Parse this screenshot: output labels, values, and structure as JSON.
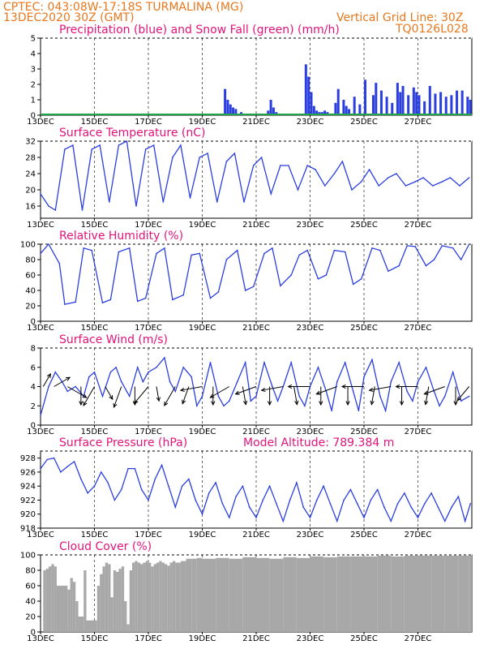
{
  "header": {
    "line1": "CPTEC:   043:08W-17:18S  TURMALINA (MG)",
    "line2": "13DEC2020 30Z (GMT)",
    "right1": "Vertical Grid Line: 30Z",
    "right2": "TQ0126L028"
  },
  "dates": [
    "13DEC",
    "15DEC",
    "17DEC",
    "19DEC",
    "21DEC",
    "23DEC",
    "25DEC",
    "27DEC"
  ],
  "colors": {
    "line": "#2b3fe0",
    "snow": "#1fa64a",
    "cloud": "#a8a8a8",
    "title": "#e0147a",
    "header": "#e8781e"
  },
  "chart_data": [
    {
      "id": "precip",
      "type": "bar",
      "title": "Precipitation (blue) and Snow Fall (green) (mm/h)",
      "ylim": [
        0,
        5
      ],
      "yticks": [
        "0",
        "1",
        "2",
        "3",
        "4",
        "5"
      ],
      "x_days": [
        6.8,
        6.9,
        7.0,
        7.1,
        7.2,
        7.4,
        8.4,
        8.5,
        8.6,
        8.7,
        9.8,
        9.9,
        10.0,
        10.1,
        10.2,
        10.3,
        10.4,
        10.5,
        10.6,
        10.9,
        11.0,
        11.2,
        11.3,
        11.4,
        11.6,
        11.8,
        12.0,
        12.3,
        12.4,
        12.6,
        12.8,
        13.0,
        13.2,
        13.3,
        13.4,
        13.6,
        13.8,
        13.9,
        14.0,
        14.2,
        14.4,
        14.6,
        14.8,
        15.0,
        15.2,
        15.4,
        15.6,
        15.8,
        15.9
      ],
      "values": [
        1.7,
        1.0,
        0.7,
        0.5,
        0.4,
        0.2,
        0.3,
        1.0,
        0.5,
        0.2,
        3.3,
        2.5,
        1.5,
        0.6,
        0.3,
        0.2,
        0.2,
        0.3,
        0.2,
        0.8,
        1.7,
        1.0,
        0.6,
        0.4,
        1.2,
        0.7,
        2.3,
        1.3,
        2.1,
        1.6,
        1.2,
        0.8,
        2.1,
        1.5,
        1.9,
        1.3,
        1.8,
        1.5,
        1.3,
        0.9,
        1.9,
        1.4,
        1.5,
        1.2,
        1.3,
        1.6,
        1.6,
        1.2,
        1.0
      ]
    },
    {
      "id": "temp",
      "type": "line",
      "title": "Surface Temperature (nC)",
      "ylim": [
        13,
        32
      ],
      "yticks": [
        "16",
        "20",
        "24",
        "28",
        "32"
      ],
      "x_days": [
        0.0,
        0.3,
        0.55,
        0.9,
        1.2,
        1.55,
        1.9,
        2.2,
        2.55,
        2.9,
        3.2,
        3.55,
        3.9,
        4.2,
        4.55,
        4.9,
        5.2,
        5.55,
        5.9,
        6.2,
        6.55,
        6.9,
        7.2,
        7.55,
        7.9,
        8.2,
        8.55,
        8.9,
        9.2,
        9.55,
        9.9,
        10.2,
        10.55,
        10.9,
        11.2,
        11.55,
        11.9,
        12.2,
        12.55,
        12.9,
        13.2,
        13.55,
        13.9,
        14.2,
        14.55,
        14.9,
        15.2,
        15.55,
        15.9
      ],
      "values": [
        19,
        16,
        15,
        30,
        31,
        15,
        30,
        31,
        17,
        31,
        32,
        16,
        30,
        31,
        17,
        28,
        31,
        18,
        28,
        29,
        17,
        27,
        29,
        17,
        26,
        28,
        19,
        26,
        26,
        20,
        26,
        25,
        21,
        24,
        27,
        20,
        22,
        25,
        21,
        23,
        24,
        21,
        22,
        23,
        21,
        22,
        23,
        21,
        23
      ]
    },
    {
      "id": "rh",
      "type": "line",
      "title": "Relative Humidity (%)",
      "ylim": [
        0,
        100
      ],
      "yticks": [
        "0",
        "20",
        "40",
        "60",
        "80",
        "100"
      ],
      "x_days": [
        0.0,
        0.3,
        0.7,
        0.9,
        1.3,
        1.6,
        1.9,
        2.3,
        2.6,
        2.9,
        3.3,
        3.6,
        3.9,
        4.3,
        4.6,
        4.9,
        5.3,
        5.6,
        5.9,
        6.3,
        6.6,
        6.9,
        7.3,
        7.6,
        7.9,
        8.3,
        8.6,
        8.9,
        9.3,
        9.6,
        9.9,
        10.3,
        10.6,
        10.9,
        11.3,
        11.6,
        11.9,
        12.3,
        12.6,
        12.9,
        13.3,
        13.6,
        13.9,
        14.3,
        14.6,
        14.9,
        15.3,
        15.6,
        15.9
      ],
      "values": [
        88,
        100,
        75,
        22,
        25,
        95,
        92,
        24,
        28,
        90,
        95,
        26,
        30,
        88,
        95,
        28,
        34,
        86,
        88,
        30,
        38,
        80,
        92,
        40,
        45,
        88,
        95,
        46,
        60,
        86,
        92,
        55,
        60,
        92,
        90,
        48,
        55,
        95,
        92,
        65,
        72,
        98,
        97,
        72,
        80,
        98,
        95,
        80,
        100
      ]
    },
    {
      "id": "wind",
      "type": "line",
      "title": "Surface Wind (m/s)",
      "ylim": [
        0,
        8
      ],
      "yticks": [
        "0",
        "2",
        "4",
        "6",
        "8"
      ],
      "x_days": [
        0.0,
        0.3,
        0.55,
        0.8,
        1.0,
        1.3,
        1.6,
        1.8,
        2.0,
        2.3,
        2.6,
        2.8,
        3.0,
        3.3,
        3.6,
        3.8,
        4.0,
        4.3,
        4.6,
        4.8,
        5.0,
        5.3,
        5.6,
        5.8,
        6.0,
        6.3,
        6.6,
        6.8,
        7.0,
        7.3,
        7.6,
        7.8,
        8.0,
        8.3,
        8.6,
        8.8,
        9.0,
        9.3,
        9.6,
        9.8,
        10.0,
        10.3,
        10.6,
        10.8,
        11.0,
        11.3,
        11.6,
        11.8,
        12.0,
        12.3,
        12.6,
        12.8,
        13.0,
        13.3,
        13.6,
        13.8,
        14.0,
        14.3,
        14.6,
        14.8,
        15.0,
        15.3,
        15.6,
        15.9
      ],
      "values": [
        1.0,
        4.0,
        5.5,
        4.5,
        3.5,
        4.0,
        3.0,
        5.0,
        5.5,
        3.0,
        5.5,
        6.0,
        4.5,
        3.0,
        6.0,
        4.5,
        5.5,
        6.0,
        7.0,
        4.5,
        3.5,
        6.0,
        5.0,
        2.0,
        3.0,
        6.5,
        3.0,
        2.0,
        2.5,
        4.5,
        6.5,
        2.5,
        3.0,
        6.5,
        4.0,
        2.5,
        4.0,
        6.5,
        3.0,
        2.0,
        4.0,
        6.0,
        3.5,
        1.5,
        4.5,
        6.5,
        3.5,
        1.5,
        5.0,
        6.8,
        3.0,
        1.5,
        4.5,
        6.5,
        3.5,
        2.5,
        4.5,
        6.0,
        3.5,
        2.0,
        3.0,
        5.5,
        2.5,
        3.0
      ],
      "arrow_days": [
        0.1,
        0.5,
        1.0,
        1.5,
        2.0,
        2.4,
        3.0,
        3.5,
        4.0,
        4.3,
        5.0,
        5.5,
        6.0,
        6.4,
        7.0,
        7.5,
        8.0,
        8.5,
        9.0,
        9.4,
        10.0,
        10.4,
        11.0,
        11.4,
        12.0,
        12.4,
        13.0,
        13.4,
        14.0,
        14.4,
        15.0,
        15.4,
        15.9
      ],
      "arrow_dir_deg": [
        30,
        60,
        120,
        180,
        210,
        150,
        200,
        180,
        220,
        170,
        210,
        200,
        260,
        180,
        240,
        170,
        250,
        180,
        260,
        170,
        270,
        180,
        250,
        180,
        270,
        190,
        260,
        180,
        270,
        190,
        250,
        180,
        220
      ],
      "arrow_speed": [
        2.0,
        2.5,
        3.0,
        2.5,
        3.0,
        2.0,
        3.0,
        2.5,
        3.0,
        2.0,
        3.0,
        2.5,
        3.0,
        2.5,
        3.0,
        2.5,
        3.0,
        2.5,
        3.0,
        2.5,
        3.0,
        2.5,
        3.0,
        2.5,
        3.0,
        2.5,
        3.0,
        2.5,
        3.0,
        2.5,
        3.0,
        2.5,
        2.5
      ]
    },
    {
      "id": "pres",
      "type": "line",
      "title": "Surface Pressure (hPa)",
      "subtitle": "Model Altitude: 789.384 m",
      "ylim": [
        918,
        929
      ],
      "yticks": [
        "918",
        "920",
        "922",
        "924",
        "926",
        "928"
      ],
      "x_days": [
        0.0,
        0.25,
        0.5,
        0.75,
        1.0,
        1.25,
        1.5,
        1.75,
        2.0,
        2.25,
        2.5,
        2.75,
        3.0,
        3.25,
        3.5,
        3.75,
        4.0,
        4.25,
        4.5,
        4.75,
        5.0,
        5.25,
        5.5,
        5.75,
        6.0,
        6.25,
        6.5,
        6.75,
        7.0,
        7.25,
        7.5,
        7.75,
        8.0,
        8.25,
        8.5,
        8.75,
        9.0,
        9.25,
        9.5,
        9.75,
        10.0,
        10.25,
        10.5,
        10.75,
        11.0,
        11.25,
        11.5,
        11.75,
        12.0,
        12.25,
        12.5,
        12.75,
        13.0,
        13.25,
        13.5,
        13.75,
        14.0,
        14.25,
        14.5,
        14.75,
        15.0,
        15.25,
        15.5,
        15.75,
        15.95
      ],
      "values": [
        926.5,
        927.8,
        928.0,
        926.0,
        926.8,
        927.5,
        925.0,
        923.0,
        924.0,
        926.0,
        924.5,
        922.0,
        923.5,
        926.5,
        926.5,
        923.5,
        922.0,
        925.0,
        927.0,
        924.0,
        921.0,
        924.0,
        925.0,
        922.0,
        920.0,
        923.0,
        924.5,
        921.5,
        919.5,
        922.5,
        924.0,
        921.0,
        919.5,
        922.0,
        924.0,
        921.5,
        919.0,
        922.0,
        924.5,
        921.0,
        919.5,
        922.0,
        924.0,
        921.5,
        919.0,
        922.0,
        923.5,
        921.5,
        919.5,
        922.0,
        923.5,
        921.0,
        919.0,
        921.5,
        923.0,
        921.0,
        919.5,
        921.5,
        923.0,
        921.0,
        919.0,
        921.0,
        922.5,
        919.0,
        921.5
      ]
    },
    {
      "id": "cloud",
      "type": "bar",
      "title": "Cloud Cover (%)",
      "ylim": [
        0,
        100
      ],
      "yticks": [
        "0",
        "20",
        "40",
        "60",
        "80",
        "100"
      ],
      "x_days": [
        0.1,
        0.2,
        0.3,
        0.4,
        0.5,
        0.6,
        1.0,
        1.1,
        1.2,
        1.3,
        1.4,
        1.6,
        1.7,
        2.1,
        2.2,
        2.3,
        2.4,
        2.5,
        2.6,
        2.7,
        2.8,
        2.9,
        3.0,
        3.1,
        3.2,
        3.3,
        3.4,
        3.5,
        3.6,
        3.7,
        3.8,
        3.9,
        4.0,
        4.1,
        4.2,
        4.3,
        4.4,
        4.5,
        4.6,
        4.7,
        4.8,
        4.9,
        5.0,
        5.2,
        5.4,
        5.6,
        5.8,
        6.0,
        6.5,
        7.0,
        7.5,
        8.0,
        8.5,
        9.0,
        9.5,
        10.0,
        10.5,
        11.0,
        11.5,
        12.0,
        12.5,
        13.0,
        13.5,
        14.0,
        14.5,
        15.0,
        15.5,
        15.9
      ],
      "values": [
        80,
        82,
        85,
        88,
        85,
        60,
        55,
        70,
        65,
        40,
        20,
        80,
        15,
        60,
        75,
        85,
        90,
        88,
        45,
        80,
        78,
        82,
        85,
        40,
        10,
        80,
        90,
        92,
        90,
        88,
        90,
        92,
        90,
        85,
        88,
        90,
        92,
        90,
        88,
        86,
        90,
        92,
        90,
        92,
        95,
        95,
        96,
        95,
        96,
        95,
        97,
        96,
        95,
        97,
        96,
        98,
        97,
        98,
        98,
        98,
        99,
        98,
        99,
        99,
        99,
        99,
        99,
        99
      ]
    }
  ]
}
